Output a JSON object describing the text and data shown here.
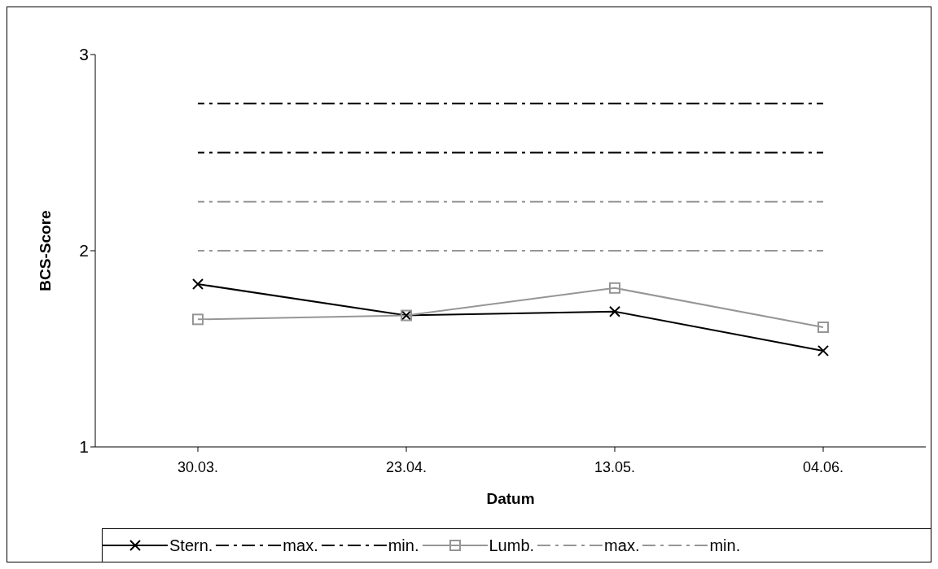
{
  "chart_data": {
    "type": "line",
    "xlabel": "Datum",
    "ylabel": "BCS-Score",
    "categories": [
      "30.03.",
      "23.04.",
      "13.05.",
      "04.06."
    ],
    "series": [
      {
        "name": "Stern.",
        "color": "#000000",
        "marker": "cross",
        "line_style": "solid",
        "values": [
          1.83,
          1.67,
          1.69,
          1.49
        ]
      },
      {
        "name": "max.",
        "color": "#000000",
        "marker": "none",
        "line_style": "dashed",
        "values": [
          2.75,
          2.75,
          2.75,
          2.75
        ]
      },
      {
        "name": "min.",
        "color": "#000000",
        "marker": "none",
        "line_style": "dashed",
        "values": [
          2.5,
          2.5,
          2.5,
          2.5
        ]
      },
      {
        "name": "Lumb.",
        "color": "#969696",
        "marker": "square",
        "line_style": "solid",
        "values": [
          1.65,
          1.67,
          1.81,
          1.61
        ]
      },
      {
        "name": "max.",
        "color": "#969696",
        "marker": "none",
        "line_style": "dashed",
        "values": [
          2.25,
          2.25,
          2.25,
          2.25
        ]
      },
      {
        "name": "min.",
        "color": "#969696",
        "marker": "none",
        "line_style": "dashed",
        "values": [
          2.0,
          2.0,
          2.0,
          2.0
        ]
      }
    ],
    "ylim": [
      1,
      3
    ],
    "yticks": [
      1,
      2,
      3
    ],
    "grid": false,
    "legend": "bottom"
  }
}
